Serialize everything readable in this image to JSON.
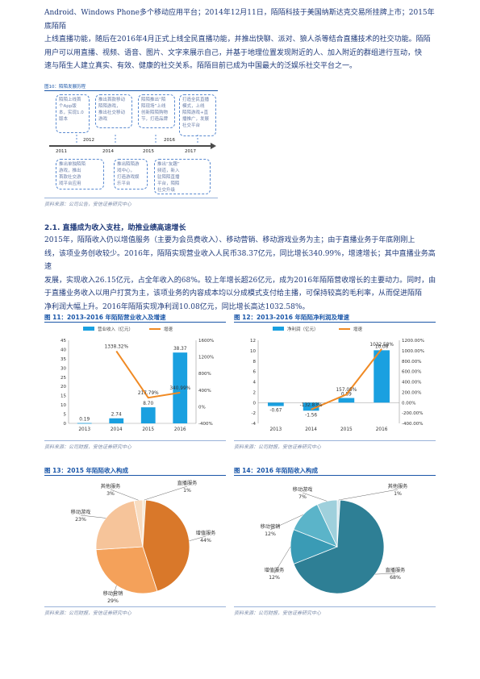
{
  "intro": {
    "lines": [
      "Android、Windows Phone多个移动应用平台；2014年12月11日，陌陌科技于美国纳斯达克交易所挂牌上市；2015年底陌陌",
      "上线直播功能，随后在2016年4月正式上线全民直播功能，并推出快聊、派对、狼人杀等结合直播技术的社交功能。陌陌",
      "用户可以用直播、视频、语音、图片、文字来展示自己，并基于地理位置发现附近的人、加入附近的群组进行互动，快",
      "速与陌生人建立真实、有效、健康的社交关系。陌陌目前已成为中国最大的泛娱乐社交平台之一。"
    ]
  },
  "timeline": {
    "fig_label": "图10：陌陌发展历程",
    "years": [
      "2011",
      "2012",
      "2014",
      "2015",
      "2016",
      "2017"
    ],
    "top_boxes": [
      "陌陌上线首\n个App版\n本，实现1.0\n版本",
      "推出首款移动\n陌陌游戏，\n推出社交移动\n游戏",
      "陌陌推出“陌\n陌现场”上线\n创新陌陌购物\n节，打造品牌",
      "打造全民直播\n模式，上线\n陌陌游戏+直\n播推广，发展\n社交平台"
    ],
    "bottom_boxes": [
      "推出单独陌陌\n游戏，推出\n首款社交游\n戏平台应用",
      "推出陌陌游\n戏中心，\n打造游戏娱\n乐平台",
      "推出“友趣”\n频道，新入\n驻陌陌直播\n平台，陌陌\n社交升级"
    ],
    "source": "资料来源：公司公告，安信证券研究中心"
  },
  "section": {
    "title": "2.1. 直播成为收入支柱，助推业绩高速增长",
    "lines": [
      "2015年，陌陌收入仍以增值服务（主要为会员费收入）、移动营销、移动游戏业务为主；由于直播业务于年底刚刚上",
      "线，该项业务创收较少。2016年，陌陌实现营业收入人民币38.37亿元，同比增长340.99%，增速增长；其中直播业务高速",
      "发展，实现收入26.15亿元，占全年收入的68%。较上年增长超26亿元，成为2016年陌陌营收增长的主要动力。同时，由",
      "于直播业务收入以用户打赏为主，该项业务的内容成本均以分成模式支付给主播，可保持较高的毛利率，从而促进陌陌",
      "净利润大幅上升。2016年陌陌实现净利润10.08亿元，同比增长高达1032.58%。"
    ]
  },
  "fig11": {
    "title": "图 11：2013-2016 年陌陌营业收入及增速",
    "source": "资料来源：公司财报，安信证券研究中心"
  },
  "fig12": {
    "title": "图 12：2013-2016 年陌陌净利润及增速",
    "source": "资料来源：公司财报，安信证券研究中心"
  },
  "fig13": {
    "title": "图 13：2015 年陌陌收入构成",
    "source": ""
  },
  "fig14": {
    "title": "图 14：2016 年陌陌收入构成",
    "source": "资料来源：公司财报，安信证券研究中心"
  },
  "chart_data": [
    {
      "id": "fig11",
      "type": "bar",
      "categories": [
        "2013",
        "2014",
        "2015",
        "2016"
      ],
      "series": [
        {
          "name": "营业收入（亿元）",
          "kind": "bar",
          "values": [
            0.19,
            2.74,
            8.7,
            38.37
          ],
          "labels": [
            "0.19",
            "2.74",
            "8.70",
            "38.37"
          ],
          "color": "#1aa0e0"
        },
        {
          "name": "增速",
          "kind": "line",
          "axis": "right",
          "values": [
            null,
            1338.32,
            217.79,
            340.99
          ],
          "labels": [
            "",
            "1338.32%",
            "217.79%",
            "340.99%"
          ],
          "color": "#f08a24"
        }
      ],
      "ylim": [
        0,
        45
      ],
      "yticks": [
        0,
        5,
        10,
        15,
        20,
        25,
        30,
        35,
        40,
        45
      ],
      "y2lim": [
        -400,
        1600
      ],
      "y2ticks": [
        "-400%",
        "0%",
        "400%",
        "800%",
        "1200%",
        "1600%"
      ]
    },
    {
      "id": "fig12",
      "type": "bar",
      "categories": [
        "2013",
        "2014",
        "2015",
        "2016"
      ],
      "series": [
        {
          "name": "净利润（亿元）",
          "kind": "bar",
          "values": [
            -0.67,
            -1.56,
            0.89,
            10.08
          ],
          "labels": [
            "-0.67",
            "-1.56",
            "0.89",
            "10.08"
          ],
          "color": "#1aa0e0"
        },
        {
          "name": "增速",
          "kind": "line",
          "axis": "right",
          "values": [
            null,
            -132.83,
            157.05,
            1032.58
          ],
          "labels": [
            "",
            "-132.83%",
            "157.05%",
            "1032.58%"
          ],
          "color": "#f08a24"
        }
      ],
      "ylim": [
        -4,
        12
      ],
      "yticks": [
        -4,
        -2,
        0,
        2,
        4,
        6,
        8,
        10,
        12
      ],
      "y2lim": [
        -400,
        1200
      ],
      "y2ticks": [
        "-400.00%",
        "-200.00%",
        "0.00%",
        "200.00%",
        "400.00%",
        "600.00%",
        "800.00%",
        "1000.00%",
        "1200.00%"
      ]
    },
    {
      "id": "fig13",
      "type": "pie",
      "slices": [
        {
          "name": "直播服务",
          "value": 1,
          "label": "1%",
          "color": "#f3e6d2"
        },
        {
          "name": "增值服务",
          "value": 44,
          "label": "44%",
          "color": "#d9782a"
        },
        {
          "name": "移动营销",
          "value": 29,
          "label": "29%",
          "color": "#f4a15a"
        },
        {
          "name": "移动游戏",
          "value": 23,
          "label": "23%",
          "color": "#f6c49a"
        },
        {
          "name": "其他服务",
          "value": 3,
          "label": "3%",
          "color": "#f8dcc0"
        }
      ]
    },
    {
      "id": "fig14",
      "type": "pie",
      "slices": [
        {
          "name": "其他服务",
          "value": 1,
          "label": "1%",
          "color": "#d7e8ee"
        },
        {
          "name": "直播服务",
          "value": 68,
          "label": "68%",
          "color": "#2e7f95"
        },
        {
          "name": "增值服务",
          "value": 12,
          "label": "12%",
          "color": "#3a9bb5"
        },
        {
          "name": "移动营销",
          "value": 12,
          "label": "12%",
          "color": "#5bb4c9"
        },
        {
          "name": "移动游戏",
          "value": 7,
          "label": "7%",
          "color": "#9fd0dc"
        }
      ]
    }
  ]
}
